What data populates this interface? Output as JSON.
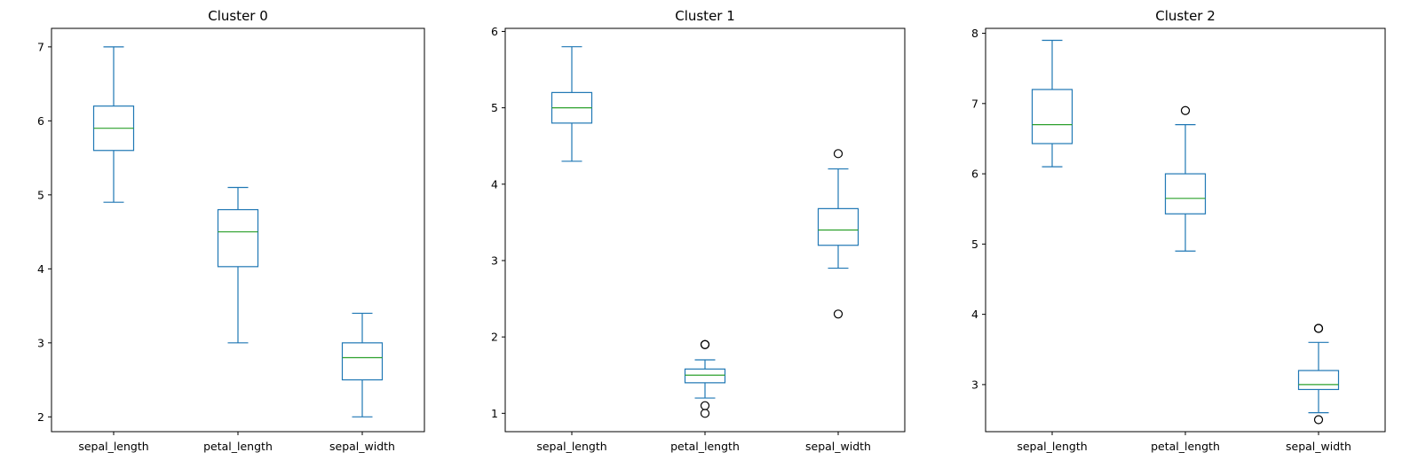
{
  "figure": {
    "colors": {
      "box": "#1f77b4",
      "median": "#2ca02c",
      "flier": "#000000",
      "axes": "#000000",
      "background": "#ffffff"
    }
  },
  "chart_data": [
    {
      "type": "box",
      "title": "Cluster 0",
      "categories": [
        "sepal_length",
        "petal_length",
        "sepal_width"
      ],
      "boxes": [
        {
          "whislo": 4.9,
          "q1": 5.6,
          "med": 5.9,
          "q3": 6.2,
          "whishi": 7.0,
          "fliers": []
        },
        {
          "whislo": 3.0,
          "q1": 4.03,
          "med": 4.5,
          "q3": 4.8,
          "whishi": 5.1,
          "fliers": []
        },
        {
          "whislo": 2.0,
          "q1": 2.5,
          "med": 2.8,
          "q3": 3.0,
          "whishi": 3.4,
          "fliers": []
        }
      ],
      "ylim": [
        1.8,
        7.25
      ],
      "yticks": [
        2,
        3,
        4,
        5,
        6,
        7
      ],
      "grid": false
    },
    {
      "type": "box",
      "title": "Cluster 1",
      "categories": [
        "sepal_length",
        "petal_length",
        "sepal_width"
      ],
      "boxes": [
        {
          "whislo": 4.3,
          "q1": 4.8,
          "med": 5.0,
          "q3": 5.2,
          "whishi": 5.8,
          "fliers": []
        },
        {
          "whislo": 1.2,
          "q1": 1.4,
          "med": 1.5,
          "q3": 1.58,
          "whishi": 1.7,
          "fliers": [
            1.9,
            1.9,
            1.1,
            1.0
          ]
        },
        {
          "whislo": 2.9,
          "q1": 3.2,
          "med": 3.4,
          "q3": 3.68,
          "whishi": 4.2,
          "fliers": [
            4.4,
            2.3
          ]
        }
      ],
      "ylim": [
        0.76,
        6.04
      ],
      "yticks": [
        1,
        2,
        3,
        4,
        5,
        6
      ],
      "grid": false
    },
    {
      "type": "box",
      "title": "Cluster 2",
      "categories": [
        "sepal_length",
        "petal_length",
        "sepal_width"
      ],
      "boxes": [
        {
          "whislo": 6.1,
          "q1": 6.43,
          "med": 6.7,
          "q3": 7.2,
          "whishi": 7.9,
          "fliers": []
        },
        {
          "whislo": 4.9,
          "q1": 5.43,
          "med": 5.65,
          "q3": 6.0,
          "whishi": 6.7,
          "fliers": [
            6.9
          ]
        },
        {
          "whislo": 2.6,
          "q1": 2.93,
          "med": 3.0,
          "q3": 3.2,
          "whishi": 3.6,
          "fliers": [
            3.8,
            3.8,
            2.5
          ]
        }
      ],
      "ylim": [
        2.33,
        8.07
      ],
      "yticks": [
        3,
        4,
        5,
        6,
        7,
        8
      ],
      "grid": false
    }
  ]
}
